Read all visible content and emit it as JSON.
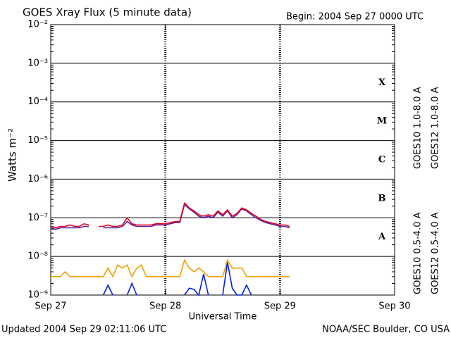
{
  "chart_data": {
    "type": "line",
    "title": "GOES Xray Flux (5 minute data)",
    "subtitle": "Begin:  2004 Sep 27 0000 UTC",
    "x_label": "Universal Time",
    "y_label": "Watts m⁻²",
    "footer_left": "Updated 2004 Sep 29 02:11:06 UTC",
    "footer_right": "NOAA/SEC Boulder, CO USA",
    "log_y": true,
    "grid": true,
    "xlim": [
      0,
      72
    ],
    "xticks": [
      {
        "value": 0,
        "label": "Sep 27"
      },
      {
        "value": 24,
        "label": "Sep 28"
      },
      {
        "value": 48,
        "label": "Sep 29"
      },
      {
        "value": 72,
        "label": "Sep 30"
      }
    ],
    "ylim": [
      1e-09,
      0.01
    ],
    "yticks": [
      {
        "value": 1e-09,
        "label": "10⁻⁹"
      },
      {
        "value": 1e-08,
        "label": "10⁻⁸"
      },
      {
        "value": 1e-07,
        "label": "10⁻⁷"
      },
      {
        "value": 1e-06,
        "label": "10⁻⁶"
      },
      {
        "value": 1e-05,
        "label": "10⁻⁵"
      },
      {
        "value": 0.0001,
        "label": "10⁻⁴"
      },
      {
        "value": 0.001,
        "label": "10⁻³"
      },
      {
        "value": 0.01,
        "label": "10⁻²"
      }
    ],
    "flare_classes": [
      "A",
      "B",
      "C",
      "M",
      "X"
    ],
    "x": [
      0,
      1,
      2,
      3,
      4,
      5,
      6,
      7,
      8,
      9,
      10,
      11,
      12,
      13,
      14,
      15,
      16,
      17,
      18,
      19,
      20,
      21,
      22,
      23,
      24,
      25,
      26,
      27,
      28,
      29,
      30,
      31,
      32,
      33,
      34,
      35,
      36,
      37,
      38,
      39,
      40,
      41,
      42,
      43,
      44,
      45,
      46,
      47,
      48,
      49,
      50
    ],
    "series": [
      {
        "name": "GOES10 1.0-8.0 A",
        "color": "#5a1fa8",
        "values": [
          5.5e-08,
          5e-08,
          5.5e-08,
          5.5e-08,
          5.5e-08,
          5.5e-08,
          5.5e-08,
          6e-08,
          6e-08,
          null,
          null,
          5.5e-08,
          5.5e-08,
          5.5e-08,
          5.5e-08,
          6e-08,
          8e-08,
          6.5e-08,
          6e-08,
          6e-08,
          6e-08,
          6e-08,
          6.5e-08,
          6.5e-08,
          6.5e-08,
          7e-08,
          7.5e-08,
          7.5e-08,
          2.2e-07,
          1.7e-07,
          1.4e-07,
          1.1e-07,
          1e-07,
          1.1e-07,
          1e-07,
          1.4e-07,
          1.1e-07,
          1.5e-07,
          1e-07,
          1.2e-07,
          1.7e-07,
          1.5e-07,
          1.2e-07,
          1e-07,
          8.5e-08,
          7.5e-08,
          7e-08,
          6.5e-08,
          6e-08,
          6e-08,
          5.5e-08
        ]
      },
      {
        "name": "GOES12 1.0-8.0 A",
        "color": "#e8001c",
        "values": [
          6e-08,
          5.5e-08,
          6e-08,
          6e-08,
          6.5e-08,
          6e-08,
          6e-08,
          7e-08,
          6.5e-08,
          null,
          6e-08,
          6e-08,
          6.5e-08,
          6e-08,
          6e-08,
          6.5e-08,
          1e-07,
          7e-08,
          6.5e-08,
          6.5e-08,
          6.5e-08,
          6.5e-08,
          7e-08,
          7e-08,
          7e-08,
          7.5e-08,
          8e-08,
          8e-08,
          2.4e-07,
          1.8e-07,
          1.5e-07,
          1.2e-07,
          1.1e-07,
          1.2e-07,
          1.1e-07,
          1.5e-07,
          1.2e-07,
          1.6e-07,
          1.1e-07,
          1.3e-07,
          1.8e-07,
          1.6e-07,
          1.3e-07,
          1.1e-07,
          9e-08,
          8e-08,
          7.5e-08,
          7e-08,
          6.5e-08,
          6.5e-08,
          6e-08
        ]
      },
      {
        "name": "GOES10 0.5-4.0 A",
        "color": "#f0a000",
        "values": [
          3e-09,
          3e-09,
          3e-09,
          4e-09,
          3e-09,
          3e-09,
          3e-09,
          3e-09,
          3e-09,
          3e-09,
          3e-09,
          3e-09,
          5e-09,
          3e-09,
          6e-09,
          5e-09,
          6e-09,
          3e-09,
          5e-09,
          6e-09,
          3e-09,
          3e-09,
          3e-09,
          3e-09,
          3e-09,
          3e-09,
          3e-09,
          3e-09,
          8e-09,
          5e-09,
          4e-09,
          5e-09,
          4e-09,
          3e-09,
          3e-09,
          3e-09,
          3e-09,
          8e-09,
          5e-09,
          5e-09,
          5e-09,
          3e-09,
          3e-09,
          3e-09,
          3e-09,
          3e-09,
          3e-09,
          3e-09,
          3e-09,
          3e-09,
          3e-09
        ]
      },
      {
        "name": "GOES12 0.5-4.0 A",
        "color": "#0020e0",
        "values": [
          null,
          null,
          null,
          null,
          null,
          null,
          null,
          null,
          null,
          null,
          null,
          1e-09,
          1.8e-09,
          1e-09,
          null,
          null,
          1e-09,
          2e-09,
          1e-09,
          null,
          null,
          null,
          null,
          null,
          null,
          null,
          null,
          null,
          1e-09,
          1.5e-09,
          1.4e-09,
          1e-09,
          3.5e-09,
          1e-09,
          null,
          null,
          1e-09,
          7e-09,
          1.5e-09,
          1e-09,
          1e-09,
          1.8e-09,
          1e-09,
          null,
          null,
          null,
          null,
          null,
          null,
          null,
          null
        ]
      }
    ]
  }
}
